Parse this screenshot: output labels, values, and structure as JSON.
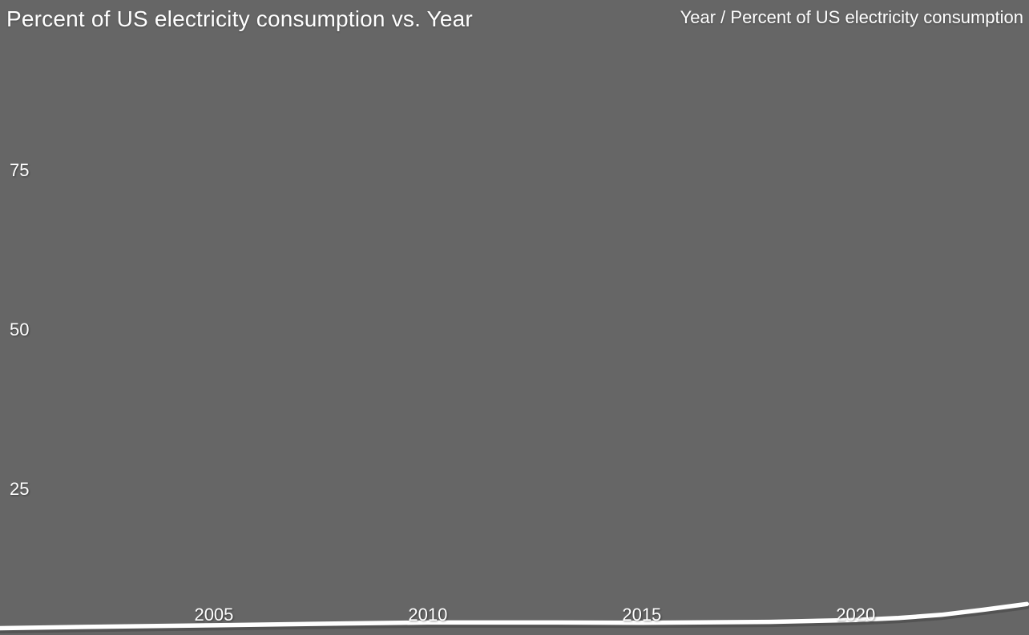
{
  "page": {
    "background_color": "#666666",
    "text_color": "#ffffff",
    "line_color": "#ffffff"
  },
  "header": {
    "title": "Percent of US electricity consumption vs. Year",
    "legend": "Year / Percent of US electricity consumption"
  },
  "chart_data": {
    "type": "line",
    "title": "Percent of US electricity consumption vs. Year",
    "xlabel": "Year",
    "ylabel": "Percent of US electricity consumption",
    "legend_label": "Year / Percent of US electricity consumption",
    "legend_position": "top-right",
    "grid": false,
    "line_color": "#ffffff",
    "background_color": "#666666",
    "xlim": [
      2000,
      2024.05
    ],
    "ylim": [
      0,
      100
    ],
    "x_ticks": [
      2005,
      2010,
      2015,
      2020
    ],
    "y_ticks": [
      25,
      50,
      75
    ],
    "series": [
      {
        "name": "Percent of US electricity consumption",
        "x": [
          2000,
          2002,
          2005,
          2008,
          2010,
          2013,
          2015,
          2018,
          2020,
          2021,
          2022,
          2023,
          2024
        ],
        "values": [
          3.2,
          3.4,
          3.65,
          3.95,
          4.1,
          4.1,
          4.05,
          4.2,
          4.5,
          4.8,
          5.3,
          6.1,
          7.0
        ]
      }
    ]
  }
}
